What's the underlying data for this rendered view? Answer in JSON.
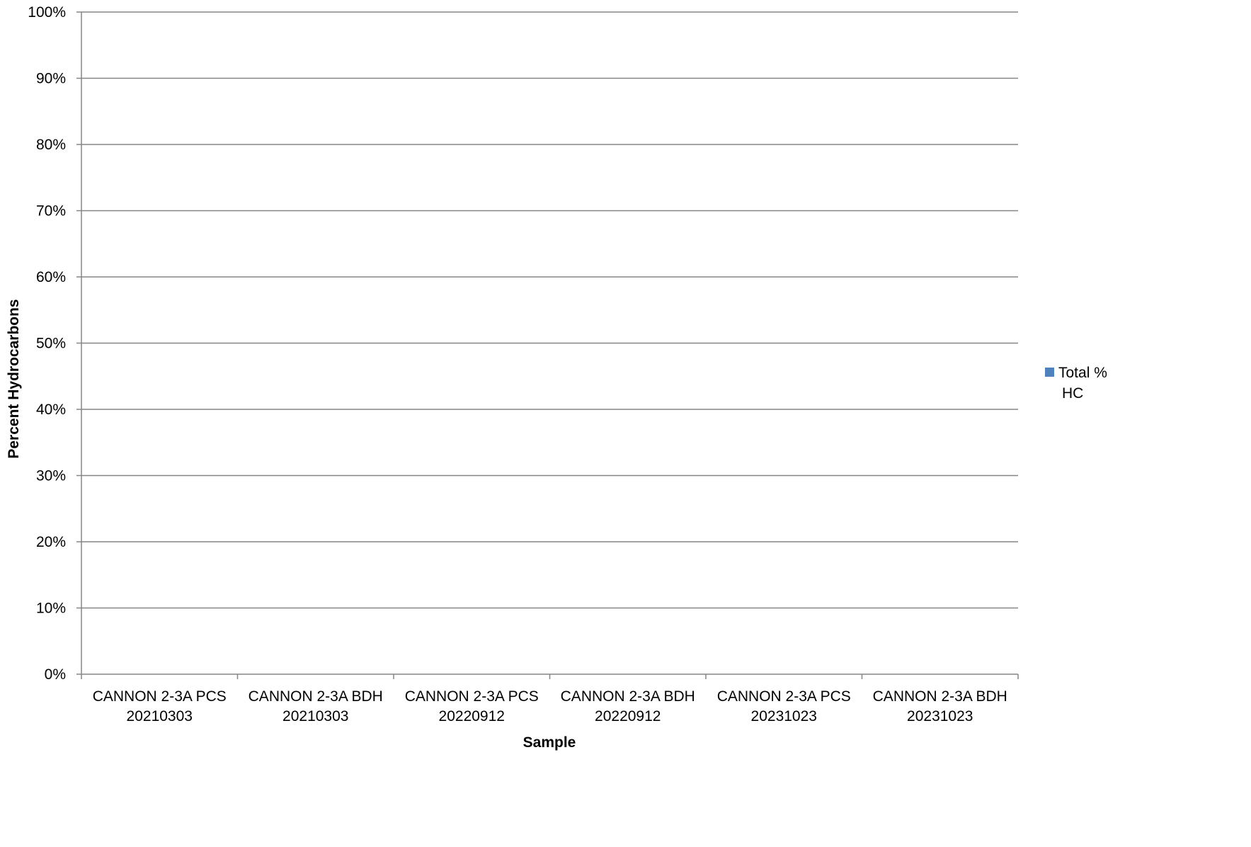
{
  "chart_data": {
    "type": "bar",
    "title": "",
    "xlabel": "Sample",
    "ylabel": "Percent Hydrocarbons",
    "categories": [
      [
        "CANNON 2-3A PCS",
        "20210303"
      ],
      [
        "CANNON 2-3A BDH",
        "20210303"
      ],
      [
        "CANNON 2-3A PCS",
        "20220912"
      ],
      [
        "CANNON 2-3A BDH",
        "20220912"
      ],
      [
        "CANNON 2-3A PCS",
        "20231023"
      ],
      [
        "CANNON 2-3A BDH",
        "20231023"
      ]
    ],
    "series": [
      {
        "name": "Total % HC",
        "color": "#4F81BD",
        "values": [
          0,
          0,
          0,
          0,
          0,
          0
        ]
      }
    ],
    "ylim": [
      0,
      1
    ],
    "yticks": [
      0,
      0.1,
      0.2,
      0.3,
      0.4,
      0.5,
      0.6,
      0.7,
      0.8,
      0.9,
      1.0
    ],
    "ytick_labels": [
      "0%",
      "10%",
      "20%",
      "30%",
      "40%",
      "50%",
      "60%",
      "70%",
      "80%",
      "90%",
      "100%"
    ],
    "grid": true,
    "legend": {
      "position": "right",
      "label_lines": [
        "Total %",
        "HC"
      ]
    }
  }
}
